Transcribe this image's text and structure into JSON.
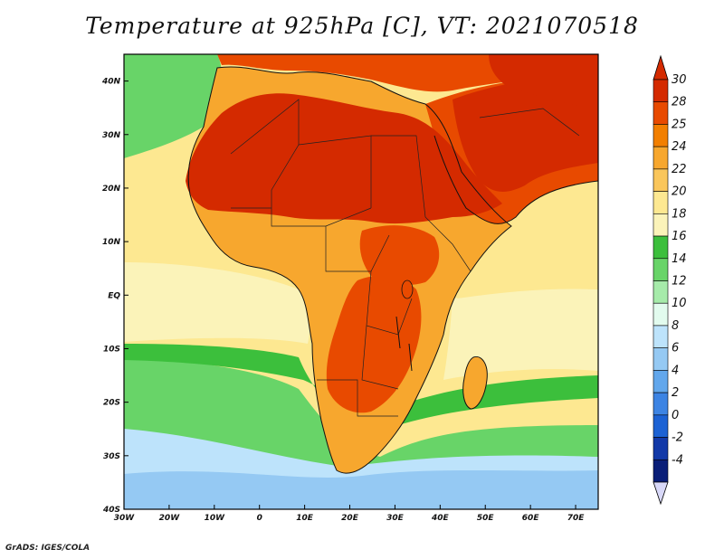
{
  "title": "Temperature at 925hPa [C], VT: 2021070518",
  "credit": "GrADS: IGES/COLA",
  "map": {
    "region": "Africa",
    "lon_range": [
      -30,
      75
    ],
    "lat_range": [
      -40,
      45
    ],
    "lon_ticks": [
      {
        "value": -30,
        "label": "30W"
      },
      {
        "value": -20,
        "label": "20W"
      },
      {
        "value": -10,
        "label": "10W"
      },
      {
        "value": 0,
        "label": "0"
      },
      {
        "value": 10,
        "label": "10E"
      },
      {
        "value": 20,
        "label": "20E"
      },
      {
        "value": 30,
        "label": "30E"
      },
      {
        "value": 40,
        "label": "40E"
      },
      {
        "value": 50,
        "label": "50E"
      },
      {
        "value": 60,
        "label": "60E"
      },
      {
        "value": 70,
        "label": "70E"
      }
    ],
    "lat_ticks": [
      {
        "value": 40,
        "label": "40N"
      },
      {
        "value": 30,
        "label": "30N"
      },
      {
        "value": 20,
        "label": "20N"
      },
      {
        "value": 10,
        "label": "10N"
      },
      {
        "value": 0,
        "label": "EQ"
      },
      {
        "value": -10,
        "label": "10S"
      },
      {
        "value": -20,
        "label": "20S"
      },
      {
        "value": -30,
        "label": "30S"
      },
      {
        "value": -40,
        "label": "40S"
      }
    ]
  },
  "colorbar": {
    "levels": [
      {
        "label": "30",
        "color": "#d42a00"
      },
      {
        "label": "28",
        "color": "#e84a00"
      },
      {
        "label": "25",
        "color": "#f27f00"
      },
      {
        "label": "24",
        "color": "#f7a72e"
      },
      {
        "label": "22",
        "color": "#fac65b"
      },
      {
        "label": "20",
        "color": "#fde891"
      },
      {
        "label": "18",
        "color": "#fbf3b9"
      },
      {
        "label": "16",
        "color": "#3cbf3c"
      },
      {
        "label": "14",
        "color": "#68d468"
      },
      {
        "label": "12",
        "color": "#a6ebaa"
      },
      {
        "label": "10",
        "color": "#e2fbee"
      },
      {
        "label": "8",
        "color": "#bde3fb"
      },
      {
        "label": "6",
        "color": "#95c9f3"
      },
      {
        "label": "4",
        "color": "#62a7ec"
      },
      {
        "label": "2",
        "color": "#3d84e3"
      },
      {
        "label": "0",
        "color": "#1c62d4"
      },
      {
        "label": "-2",
        "color": "#1239a8"
      },
      {
        "label": "-4",
        "color": "#0a1e78"
      }
    ],
    "under_color": "#d8d8f8"
  },
  "fields": {
    "ocean_south": "#95c9f3",
    "ocean_southern_band": "#bde3fb",
    "ocean_cool_band": "#e2fbee",
    "ocean_green_band": "#68d468",
    "ocean_dark_green_band": "#3cbf3c",
    "ocean_tropical": "#fbf3b9",
    "ocean_warm": "#fde891",
    "land_warm": "#f7a72e",
    "land_hot": "#e84a00",
    "land_very_hot": "#d42a00"
  }
}
